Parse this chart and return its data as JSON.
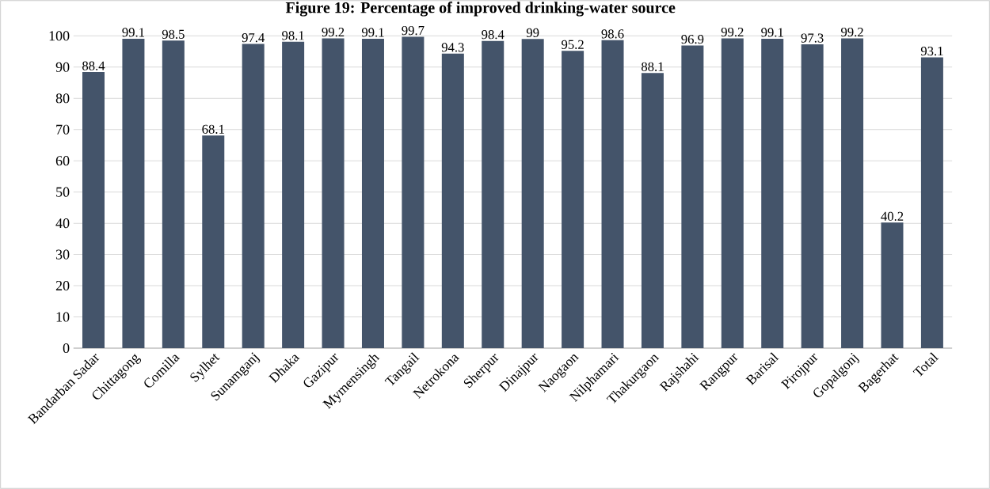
{
  "chart_data": {
    "type": "bar",
    "title": "Figure 19: Percentage of improved drinking-water source",
    "categories": [
      "Bandarban Sadar",
      "Chittagong",
      "Comilla",
      "Sylhet",
      "Sunamganj",
      "Dhaka",
      "Gazipur",
      "Mymensingh",
      "Tangail",
      "Netrokona",
      "Sherpur",
      "Dinajpur",
      "Naogaon",
      "Nilphamari",
      "Thakurgaon",
      "Rajshahi",
      "Rangpur",
      "Barisal",
      "Pirojpur",
      "Gopalgonj",
      "Bagerhat",
      "Total"
    ],
    "values": [
      88.4,
      99.1,
      98.5,
      68.1,
      97.4,
      98.1,
      99.2,
      99.1,
      99.7,
      94.3,
      98.4,
      99,
      95.2,
      98.6,
      88.1,
      96.9,
      99.2,
      99.1,
      97.3,
      99.2,
      40.2,
      93.1
    ],
    "color": "#44546a",
    "ylim": [
      0,
      100
    ],
    "yticks": [
      0,
      10,
      20,
      30,
      40,
      50,
      60,
      70,
      80,
      90,
      100
    ],
    "grid": "y",
    "data_labels": true
  }
}
